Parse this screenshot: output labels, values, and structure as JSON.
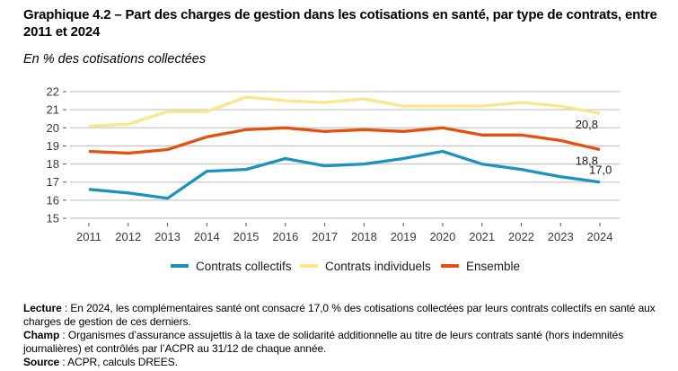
{
  "title": "Graphique 4.2 – Part des charges de gestion dans les cotisations en santé, par type de contrats, entre 2011 et 2024",
  "subtitle": "En % des cotisations collectées",
  "chart_data": {
    "type": "line",
    "title": "Graphique 4.2 – Part des charges de gestion dans les cotisations en santé, par type de contrats, entre 2011 et 2024",
    "subtitle": "En % des cotisations collectées",
    "xlabel": "",
    "ylabel": "",
    "x": [
      "2011",
      "2012",
      "2013",
      "2014",
      "2015",
      "2016",
      "2017",
      "2018",
      "2019",
      "2020",
      "2021",
      "2022",
      "2023",
      "2024"
    ],
    "ylim": [
      15,
      22
    ],
    "yticks": [
      15,
      16,
      17,
      18,
      19,
      20,
      21,
      22
    ],
    "grid": "horizontal",
    "legend_position": "bottom",
    "series": [
      {
        "name": "Contrats collectifs",
        "color": "#1a93bf",
        "values": [
          16.6,
          16.4,
          16.1,
          17.6,
          17.7,
          18.3,
          17.9,
          18.0,
          18.3,
          18.7,
          18.0,
          17.7,
          17.3,
          17.0
        ],
        "end_label": "17,0"
      },
      {
        "name": "Contrats individuels",
        "color": "#fbe68a",
        "values": [
          20.1,
          20.2,
          20.9,
          20.9,
          21.7,
          21.5,
          21.4,
          21.6,
          21.2,
          21.2,
          21.2,
          21.4,
          21.2,
          20.8
        ],
        "end_label": "20,8"
      },
      {
        "name": "Ensemble",
        "color": "#e5500f",
        "values": [
          18.7,
          18.6,
          18.8,
          19.5,
          19.9,
          20.0,
          19.8,
          19.9,
          19.8,
          20.0,
          19.6,
          19.6,
          19.3,
          18.8
        ],
        "end_label": "18,8"
      }
    ]
  },
  "notes": {
    "lecture_label": "Lecture",
    "lecture_text": " : En 2024, les complémentaires santé ont consacré 17,0 % des cotisations collectées par leurs contrats collectifs en santé aux charges de gestion de ces derniers.",
    "champ_label": "Champ",
    "champ_text": " : Organismes d’assurance assujettis à la taxe de solidarité additionnelle au titre de leurs contrats santé (hors indemnités journalières) et contrôlés par l’ACPR au 31/12 de chaque année.",
    "source_label": "Source",
    "source_text": " : ACPR, calculs DREES."
  }
}
